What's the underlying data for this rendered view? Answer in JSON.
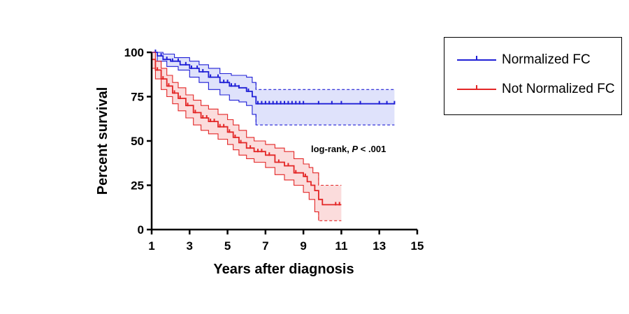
{
  "colors": {
    "normalized": "#1f1fd6",
    "normalized_band": "#dfe2fb",
    "not_normalized": "#e32626",
    "not_normalized_band": "#fbdcdc"
  },
  "chart_data": {
    "type": "line",
    "subtype": "kaplan-meier survival curve with confidence bands",
    "xlabel": "Years after diagnosis",
    "ylabel": "Percent survival",
    "xlim": [
      1,
      15
    ],
    "ylim": [
      0,
      100
    ],
    "xticks": [
      1,
      3,
      5,
      7,
      9,
      11,
      13,
      15
    ],
    "yticks": [
      0,
      25,
      50,
      75,
      100
    ],
    "grid": false,
    "legend_position": "top-right, outside plot",
    "annotation": {
      "text_pre": "log-rank, ",
      "italic": "P",
      "text_post": " < .001"
    },
    "series": [
      {
        "name": "Normalized FC",
        "color_key": "normalized",
        "steps": [
          [
            1,
            100
          ],
          [
            1.3,
            98
          ],
          [
            1.6,
            96
          ],
          [
            2,
            95
          ],
          [
            2.5,
            93
          ],
          [
            3,
            91
          ],
          [
            3.5,
            89
          ],
          [
            4,
            86
          ],
          [
            4.6,
            83
          ],
          [
            5.1,
            81
          ],
          [
            5.6,
            80
          ],
          [
            6,
            78
          ],
          [
            6.3,
            75
          ],
          [
            6.5,
            71
          ],
          [
            13.8,
            71
          ]
        ],
        "upper": [
          [
            1,
            100
          ],
          [
            1.6,
            99
          ],
          [
            2.2,
            97
          ],
          [
            3,
            95
          ],
          [
            3.5,
            93
          ],
          [
            4,
            91
          ],
          [
            4.6,
            88
          ],
          [
            5.2,
            87
          ],
          [
            6,
            86
          ],
          [
            6.3,
            83
          ],
          [
            6.5,
            79
          ],
          [
            13.8,
            79
          ]
        ],
        "lower": [
          [
            1,
            100
          ],
          [
            1.3,
            95
          ],
          [
            1.8,
            92
          ],
          [
            2.4,
            90
          ],
          [
            3,
            86
          ],
          [
            3.5,
            83
          ],
          [
            4,
            79
          ],
          [
            4.6,
            76
          ],
          [
            5.1,
            73
          ],
          [
            5.6,
            72
          ],
          [
            6,
            70
          ],
          [
            6.3,
            65
          ],
          [
            6.5,
            59
          ],
          [
            13.8,
            59
          ]
        ],
        "upper_dashed_from": 6.5,
        "lower_dashed_from": 6.5,
        "censor_x": [
          1.2,
          1.5,
          1.8,
          2.1,
          2.4,
          2.8,
          3.1,
          3.4,
          3.7,
          4.1,
          4.5,
          4.8,
          5.0,
          5.2,
          5.4,
          5.6,
          6.1,
          6.6,
          6.8,
          7.0,
          7.2,
          7.4,
          7.6,
          7.8,
          8.0,
          8.2,
          8.4,
          8.6,
          8.8,
          9.0,
          9.8,
          10.5,
          11.0,
          12.0,
          13.0,
          13.4,
          13.8
        ]
      },
      {
        "name": "Not Normalized FC",
        "color_key": "not_normalized",
        "steps": [
          [
            1,
            96
          ],
          [
            1.2,
            90
          ],
          [
            1.5,
            85
          ],
          [
            1.8,
            81
          ],
          [
            2.1,
            77
          ],
          [
            2.4,
            74
          ],
          [
            2.8,
            70
          ],
          [
            3.2,
            66
          ],
          [
            3.6,
            63
          ],
          [
            4,
            61
          ],
          [
            4.5,
            58
          ],
          [
            5,
            55
          ],
          [
            5.3,
            52
          ],
          [
            5.6,
            49
          ],
          [
            6,
            46
          ],
          [
            6.4,
            44
          ],
          [
            7,
            42
          ],
          [
            7.5,
            38
          ],
          [
            8,
            36
          ],
          [
            8.5,
            32
          ],
          [
            9,
            30
          ],
          [
            9.2,
            27
          ],
          [
            9.4,
            25
          ],
          [
            9.6,
            22
          ],
          [
            9.8,
            17
          ],
          [
            10,
            14
          ],
          [
            11,
            14
          ]
        ],
        "upper": [
          [
            1,
            100
          ],
          [
            1.2,
            95
          ],
          [
            1.5,
            91
          ],
          [
            1.8,
            87
          ],
          [
            2.1,
            83
          ],
          [
            2.4,
            80
          ],
          [
            2.8,
            76
          ],
          [
            3.2,
            73
          ],
          [
            3.6,
            70
          ],
          [
            4,
            68
          ],
          [
            4.5,
            65
          ],
          [
            5,
            62
          ],
          [
            5.3,
            59
          ],
          [
            5.6,
            56
          ],
          [
            6,
            52
          ],
          [
            6.4,
            50
          ],
          [
            7,
            48
          ],
          [
            7.5,
            46
          ],
          [
            8,
            44
          ],
          [
            8.5,
            40
          ],
          [
            9,
            37
          ],
          [
            9.3,
            35
          ],
          [
            9.5,
            32
          ],
          [
            9.8,
            25
          ],
          [
            11,
            25
          ]
        ],
        "lower": [
          [
            1,
            91
          ],
          [
            1.2,
            85
          ],
          [
            1.5,
            79
          ],
          [
            1.8,
            75
          ],
          [
            2.1,
            71
          ],
          [
            2.4,
            67
          ],
          [
            2.8,
            63
          ],
          [
            3.2,
            59
          ],
          [
            3.6,
            56
          ],
          [
            4,
            54
          ],
          [
            4.5,
            51
          ],
          [
            5,
            48
          ],
          [
            5.3,
            45
          ],
          [
            5.6,
            42
          ],
          [
            6,
            40
          ],
          [
            6.4,
            38
          ],
          [
            7,
            35
          ],
          [
            7.5,
            31
          ],
          [
            8,
            28
          ],
          [
            8.5,
            25
          ],
          [
            9,
            21
          ],
          [
            9.3,
            17
          ],
          [
            9.6,
            10
          ],
          [
            9.8,
            5
          ],
          [
            11,
            5
          ]
        ],
        "upper_dashed_from": 9.8,
        "lower_dashed_from": 9.8,
        "censor_x": [
          1.3,
          1.6,
          1.9,
          2.2,
          2.5,
          2.9,
          3.3,
          3.7,
          3.9,
          4.1,
          4.3,
          4.6,
          4.8,
          5.1,
          5.4,
          5.7,
          6.2,
          6.6,
          6.8,
          7.2,
          7.7,
          8.2,
          8.6,
          9.1,
          10.7,
          10.9
        ]
      }
    ]
  }
}
